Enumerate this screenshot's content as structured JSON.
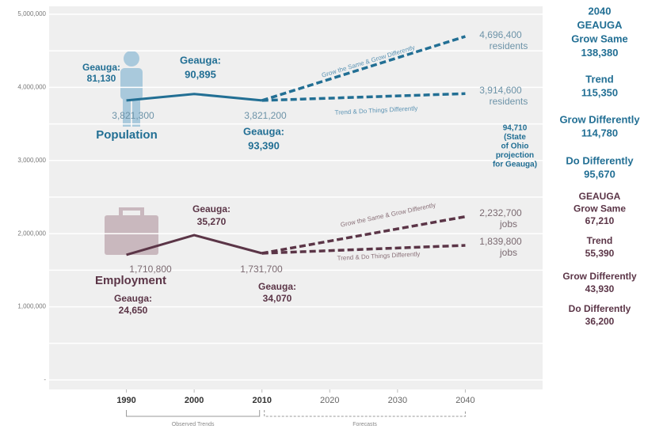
{
  "chart_data": {
    "type": "line",
    "xlim": [
      1978.6,
      2051.4
    ],
    "xticks": [
      1990,
      2000,
      2010,
      2020,
      2030,
      2040
    ],
    "ylim": [
      0,
      5000000
    ],
    "yticks": [
      {
        "value": 0,
        "label": "-"
      },
      {
        "value": 1000000,
        "label": "1,000,000"
      },
      {
        "value": 2000000,
        "label": "2,000,000"
      },
      {
        "value": 3000000,
        "label": "3,000,000"
      },
      {
        "value": 4000000,
        "label": "4,000,000"
      },
      {
        "value": 5000000,
        "label": "5,000,000"
      }
    ],
    "minor_yticks": [
      500000,
      1500000,
      2500000,
      3500000,
      4500000
    ],
    "grid": true,
    "series": [
      {
        "name": "Population",
        "color": "#226f94",
        "dash": false,
        "x": [
          1990,
          2000,
          2010
        ],
        "values": [
          3821300,
          3910000,
          3821200
        ],
        "value_labels": [
          "3,821,300",
          null,
          "3,821,200"
        ]
      },
      {
        "name": "Grow the Same & Grow Differently",
        "color": "#226f94",
        "dash": true,
        "x": [
          2010,
          2040
        ],
        "values": [
          3821200,
          4696400
        ],
        "value_labels": [
          null,
          "4,696,400"
        ],
        "unit": "residents"
      },
      {
        "name": "Trend & Do Things Differently",
        "color": "#226f94",
        "dash": true,
        "x": [
          2010,
          2040
        ],
        "values": [
          3821200,
          3914600
        ],
        "value_labels": [
          null,
          "3,914,600"
        ],
        "unit": "residents"
      },
      {
        "name": "Employment",
        "color": "#5b3547",
        "dash": false,
        "x": [
          1990,
          2000,
          2010
        ],
        "values": [
          1710800,
          1980000,
          1731700
        ],
        "value_labels": [
          "1,710,800",
          null,
          "1,731,700"
        ]
      },
      {
        "name": "Grow the Same & Grow Differently",
        "color": "#5b3547",
        "dash": true,
        "x": [
          2010,
          2040
        ],
        "values": [
          1731700,
          2232700
        ],
        "value_labels": [
          null,
          "2,232,700"
        ],
        "unit": "jobs"
      },
      {
        "name": "Trend & Do Things Differently",
        "color": "#5b3547",
        "dash": true,
        "x": [
          2010,
          2040
        ],
        "values": [
          1731700,
          1839800
        ],
        "value_labels": [
          null,
          "1,839,800"
        ],
        "unit": "jobs"
      }
    ],
    "periods": [
      {
        "label": "Observed Trends",
        "range": [
          1990,
          2010
        ]
      },
      {
        "label": "Forecasts",
        "range": [
          2010,
          2040
        ]
      }
    ],
    "annotations": [
      {
        "color": "#226f94",
        "lines": [
          "Geauga:",
          "81,130"
        ]
      },
      {
        "color": "#226f94",
        "lines": [
          "Geauga:",
          "90,895"
        ]
      },
      {
        "color": "#226f94",
        "lines": [
          "Geauga:",
          "93,390"
        ]
      },
      {
        "color": "#5b3547",
        "lines": [
          "Geauga:",
          "35,270"
        ]
      },
      {
        "color": "#5b3547",
        "lines": [
          "Geauga:",
          "24,650"
        ]
      },
      {
        "color": "#5b3547",
        "lines": [
          "Geauga:",
          "34,070"
        ]
      },
      {
        "color": "#226f94",
        "lines": [
          "2040",
          "GEAUGA",
          "Grow Same",
          "138,380"
        ]
      },
      {
        "color": "#226f94",
        "lines": [
          "Trend",
          "115,350"
        ]
      },
      {
        "color": "#226f94",
        "lines": [
          "Grow Differently",
          "114,780"
        ]
      },
      {
        "color": "#226f94",
        "lines": [
          "94,710",
          "(State",
          "of Ohio",
          "projection",
          "for Geauga)"
        ]
      },
      {
        "color": "#226f94",
        "lines": [
          "Do Differently",
          "95,670"
        ]
      },
      {
        "color": "#5b3547",
        "lines": [
          "GEAUGA",
          "Grow Same",
          "67,210"
        ]
      },
      {
        "color": "#5b3547",
        "lines": [
          "Trend",
          "55,390"
        ]
      },
      {
        "color": "#5b3547",
        "lines": [
          "Grow Differently",
          "43,930"
        ]
      },
      {
        "color": "#5b3547",
        "lines": [
          "Do Differently",
          "36,200"
        ]
      }
    ]
  }
}
